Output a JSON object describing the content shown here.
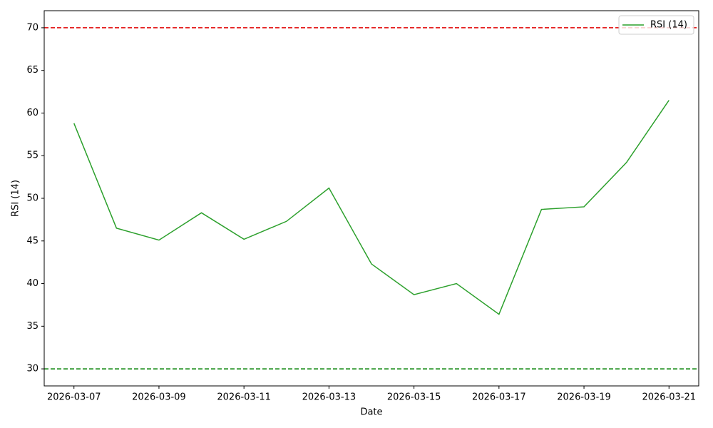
{
  "chart_data": {
    "type": "line",
    "x": [
      "2026-03-07",
      "2026-03-08",
      "2026-03-09",
      "2026-03-10",
      "2026-03-11",
      "2026-03-12",
      "2026-03-13",
      "2026-03-14",
      "2026-03-15",
      "2026-03-16",
      "2026-03-17",
      "2026-03-18",
      "2026-03-19",
      "2026-03-20",
      "2026-03-21"
    ],
    "series": [
      {
        "name": "RSI (14)",
        "color": "#2ca02c",
        "values": [
          58.8,
          46.5,
          45.1,
          48.3,
          45.2,
          47.3,
          51.2,
          42.3,
          38.7,
          40.0,
          36.4,
          48.7,
          49.0,
          54.2,
          61.5
        ]
      }
    ],
    "hlines": [
      {
        "value": 70,
        "color": "#e00000"
      },
      {
        "value": 30,
        "color": "#008000"
      }
    ],
    "xlabel": "Date",
    "ylabel": "RSI (14)",
    "xlim": [
      "2026-03-06T07:12:00Z",
      "2026-03-21T16:48:00Z"
    ],
    "xticks": [
      "2026-03-07",
      "2026-03-09",
      "2026-03-11",
      "2026-03-13",
      "2026-03-15",
      "2026-03-17",
      "2026-03-19",
      "2026-03-21"
    ],
    "ylim": [
      28,
      72
    ],
    "yticks": [
      30,
      35,
      40,
      45,
      50,
      55,
      60,
      65,
      70
    ],
    "grid": false,
    "legend": "upper right"
  }
}
